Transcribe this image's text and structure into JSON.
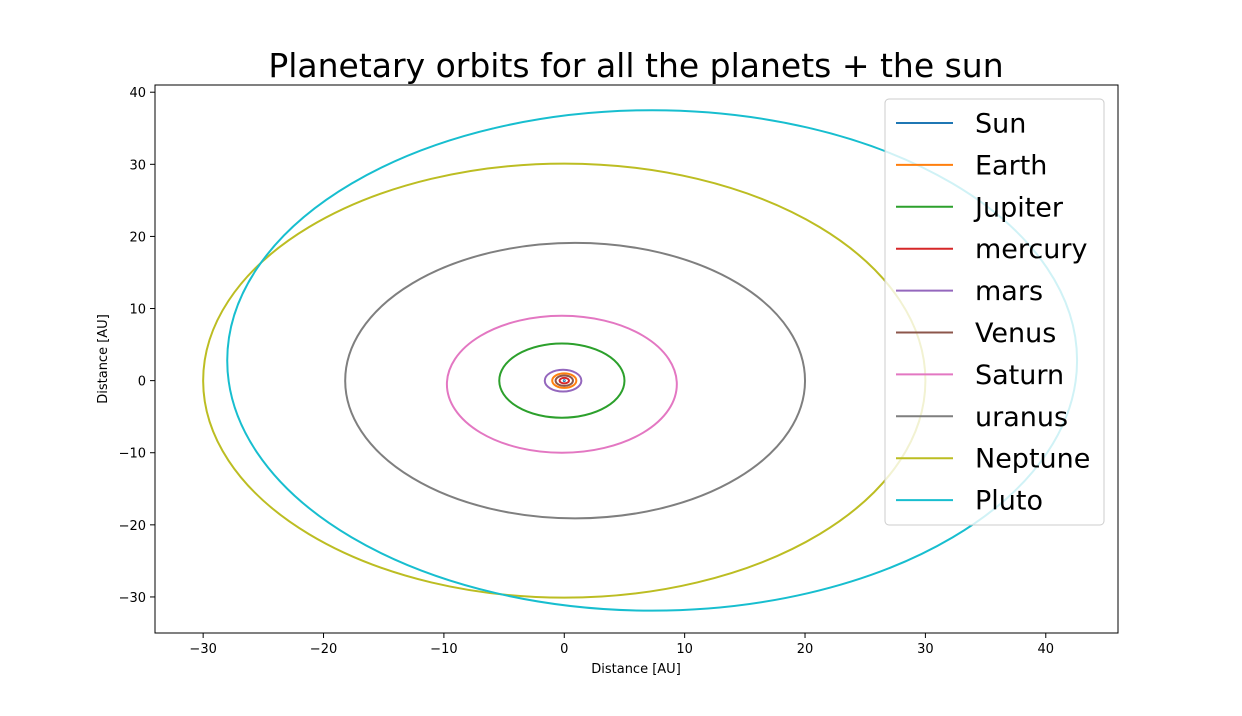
{
  "chart_data": {
    "type": "line",
    "title": "Planetary orbits for all the planets + the sun",
    "xlabel": "Distance [AU]",
    "ylabel": "Distance [AU]",
    "xlim": [
      -34,
      46
    ],
    "ylim": [
      -35,
      41
    ],
    "xticks": [
      -30,
      -20,
      -10,
      0,
      10,
      20,
      30,
      40
    ],
    "xtick_labels": [
      "−30",
      "−20",
      "−10",
      "0",
      "10",
      "20",
      "30",
      "40"
    ],
    "yticks": [
      -30,
      -20,
      -10,
      0,
      10,
      20,
      30,
      40
    ],
    "ytick_labels": [
      "−30",
      "−20",
      "−10",
      "0",
      "10",
      "20",
      "30",
      "40"
    ],
    "grid": false,
    "legend_position": "upper right",
    "series": [
      {
        "name": "Sun",
        "color": "#1f77b4",
        "center": [
          0,
          0
        ],
        "rx": 0.01,
        "ry": 0.01
      },
      {
        "name": "Earth",
        "color": "#ff7f0e",
        "center": [
          0,
          0
        ],
        "rx": 1.0,
        "ry": 1.0
      },
      {
        "name": "Jupiter",
        "color": "#2ca02c",
        "center": [
          -0.2,
          0
        ],
        "rx": 5.2,
        "ry": 5.15
      },
      {
        "name": "mercury",
        "color": "#d62728",
        "center": [
          0,
          0
        ],
        "rx": 0.39,
        "ry": 0.38
      },
      {
        "name": "mars",
        "color": "#9467bd",
        "center": [
          -0.1,
          0
        ],
        "rx": 1.52,
        "ry": 1.51
      },
      {
        "name": "Venus",
        "color": "#8c564b",
        "center": [
          0,
          0
        ],
        "rx": 0.72,
        "ry": 0.72
      },
      {
        "name": "Saturn",
        "color": "#e377c2",
        "center": [
          -0.2,
          -0.5
        ],
        "rx": 9.55,
        "ry": 9.5
      },
      {
        "name": "uranus",
        "color": "#7f7f7f",
        "center": [
          0.9,
          0
        ],
        "rx": 19.1,
        "ry": 19.1
      },
      {
        "name": "Neptune",
        "color": "#bcbd22",
        "center": [
          0,
          0
        ],
        "rx": 30.0,
        "ry": 30.1
      },
      {
        "name": "Pluto",
        "color": "#17becf",
        "center": [
          7.3,
          2.8
        ],
        "rx": 35.3,
        "ry": 34.7
      }
    ]
  }
}
